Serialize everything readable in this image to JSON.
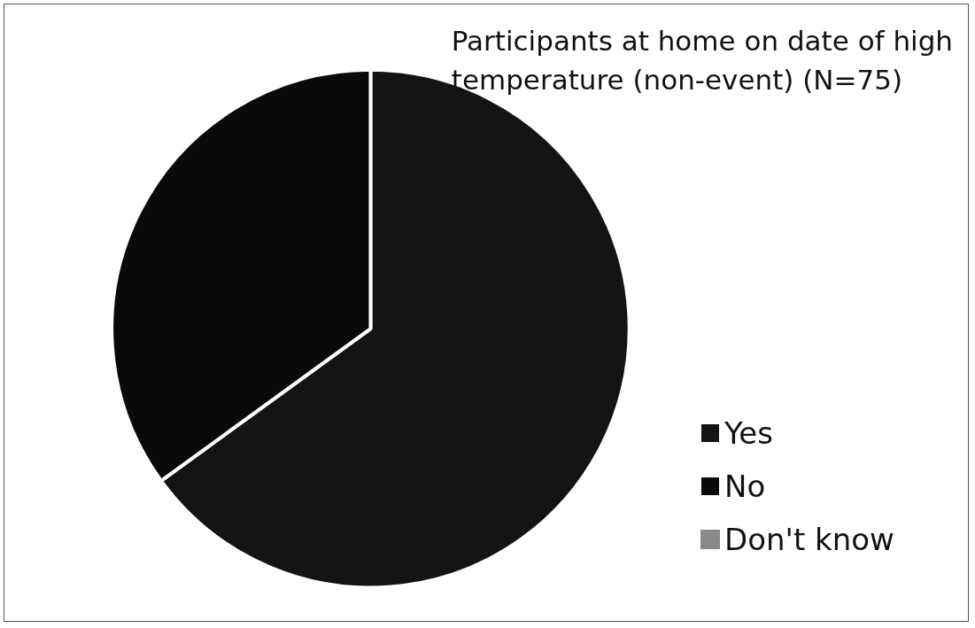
{
  "chart_data": {
    "type": "pie",
    "title": "Participants at home on date of high\ntemperature (non-event) (N=75)",
    "categories": [
      "Yes",
      "No",
      "Don't know"
    ],
    "values": [
      65,
      35,
      0
    ],
    "colors": [
      "#141414",
      "#0a0a0a",
      "#8a8a8a"
    ],
    "legend": "right"
  }
}
